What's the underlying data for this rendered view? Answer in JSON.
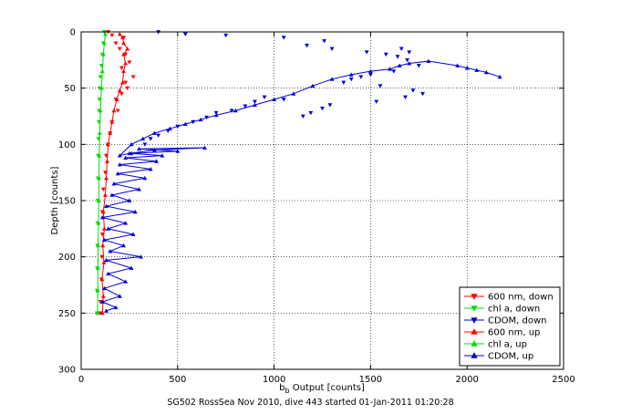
{
  "chart_data": {
    "type": "scatter",
    "title": "",
    "xlabel": "b_b Output [counts]",
    "ylabel": "Depth [counts]",
    "caption": "SG502 RossSea Nov 2010, dive 443 started 01-Jan-2011 01:20:28",
    "xlim": [
      0,
      2500
    ],
    "ylim": [
      0,
      300
    ],
    "y_reversed": true,
    "grid": true,
    "legend_position": "bottom-right",
    "x_ticks": [
      0,
      500,
      1000,
      1500,
      2000,
      2500
    ],
    "y_ticks": [
      0,
      50,
      100,
      150,
      200,
      250,
      300
    ],
    "x_tick_labels": [
      "0",
      "500",
      "1000",
      "1500",
      "2000",
      "2500"
    ],
    "y_tick_labels": [
      "0",
      "50",
      "100",
      "150",
      "200",
      "250",
      "300"
    ],
    "series": [
      {
        "name": "600 nm, down",
        "color": "#ff0000",
        "marker": "triangle-down",
        "style": "markers",
        "points": [
          [
            140,
            0
          ],
          [
            160,
            3
          ],
          [
            220,
            5
          ],
          [
            180,
            10
          ],
          [
            200,
            15
          ],
          [
            230,
            20
          ],
          [
            250,
            27
          ],
          [
            210,
            32
          ],
          [
            270,
            40
          ],
          [
            230,
            45
          ],
          [
            240,
            50
          ],
          [
            210,
            55
          ],
          [
            180,
            60
          ],
          [
            190,
            70
          ],
          [
            160,
            80
          ],
          [
            150,
            90
          ],
          [
            140,
            100
          ],
          [
            130,
            110
          ],
          [
            125,
            125
          ],
          [
            115,
            140
          ],
          [
            110,
            160
          ],
          [
            110,
            180
          ],
          [
            108,
            200
          ],
          [
            105,
            220
          ],
          [
            100,
            240
          ],
          [
            98,
            250
          ]
        ]
      },
      {
        "name": "chl a, down",
        "color": "#00dd00",
        "marker": "triangle-down",
        "style": "markers",
        "points": [
          [
            120,
            0
          ],
          [
            115,
            10
          ],
          [
            110,
            20
          ],
          [
            105,
            30
          ],
          [
            100,
            40
          ],
          [
            97,
            50
          ],
          [
            95,
            60
          ],
          [
            93,
            70
          ],
          [
            92,
            80
          ],
          [
            90,
            95
          ],
          [
            88,
            110
          ],
          [
            87,
            130
          ],
          [
            86,
            150
          ],
          [
            85,
            170
          ],
          [
            84,
            190
          ],
          [
            83,
            210
          ],
          [
            82,
            230
          ],
          [
            82,
            250
          ]
        ]
      },
      {
        "name": "CDOM, down",
        "color": "#0000dd",
        "marker": "triangle-down",
        "style": "markers",
        "points": [
          [
            400,
            0
          ],
          [
            540,
            2
          ],
          [
            750,
            3
          ],
          [
            1050,
            5
          ],
          [
            1260,
            8
          ],
          [
            1170,
            12
          ],
          [
            1300,
            15
          ],
          [
            1480,
            18
          ],
          [
            1580,
            20
          ],
          [
            1660,
            15
          ],
          [
            1700,
            18
          ],
          [
            1640,
            22
          ],
          [
            1690,
            25
          ],
          [
            1750,
            30
          ],
          [
            1620,
            35
          ],
          [
            1500,
            38
          ],
          [
            1450,
            40
          ],
          [
            1400,
            42
          ],
          [
            1360,
            45
          ],
          [
            1550,
            48
          ],
          [
            1720,
            52
          ],
          [
            1770,
            55
          ],
          [
            1680,
            58
          ],
          [
            1530,
            62
          ],
          [
            1290,
            65
          ],
          [
            1250,
            68
          ],
          [
            1190,
            72
          ],
          [
            1150,
            75
          ],
          [
            1050,
            60
          ],
          [
            950,
            58
          ],
          [
            900,
            62
          ],
          [
            850,
            66
          ],
          [
            780,
            70
          ],
          [
            700,
            72
          ],
          [
            650,
            76
          ],
          [
            580,
            80
          ],
          [
            500,
            84
          ],
          [
            450,
            88
          ],
          [
            400,
            92
          ],
          [
            360,
            95
          ],
          [
            330,
            100
          ]
        ]
      },
      {
        "name": "600 nm, up",
        "color": "#ff0000",
        "marker": "triangle-up",
        "style": "line",
        "points": [
          [
            110,
            250
          ],
          [
            115,
            235
          ],
          [
            108,
            220
          ],
          [
            118,
            205
          ],
          [
            112,
            190
          ],
          [
            120,
            175
          ],
          [
            115,
            160
          ],
          [
            125,
            145
          ],
          [
            130,
            130
          ],
          [
            135,
            115
          ],
          [
            140,
            100
          ],
          [
            150,
            90
          ],
          [
            160,
            80
          ],
          [
            170,
            70
          ],
          [
            185,
            60
          ],
          [
            200,
            52
          ],
          [
            215,
            45
          ],
          [
            220,
            35
          ],
          [
            230,
            28
          ],
          [
            220,
            20
          ],
          [
            240,
            15
          ],
          [
            220,
            10
          ],
          [
            215,
            5
          ],
          [
            200,
            2
          ]
        ]
      },
      {
        "name": "chl a, up",
        "color": "#00dd00",
        "marker": "triangle-up",
        "style": "line",
        "points": [
          [
            85,
            250
          ],
          [
            86,
            230
          ],
          [
            87,
            210
          ],
          [
            88,
            190
          ],
          [
            90,
            170
          ],
          [
            91,
            150
          ],
          [
            92,
            130
          ],
          [
            94,
            110
          ],
          [
            96,
            90
          ],
          [
            100,
            70
          ],
          [
            105,
            50
          ],
          [
            110,
            35
          ],
          [
            115,
            20
          ],
          [
            120,
            10
          ],
          [
            125,
            2
          ]
        ]
      },
      {
        "name": "CDOM, up",
        "color": "#0000dd",
        "marker": "triangle-up",
        "style": "line",
        "points": [
          [
            130,
            248
          ],
          [
            180,
            245
          ],
          [
            110,
            240
          ],
          [
            200,
            235
          ],
          [
            120,
            228
          ],
          [
            230,
            222
          ],
          [
            140,
            215
          ],
          [
            260,
            210
          ],
          [
            130,
            203
          ],
          [
            310,
            200
          ],
          [
            150,
            195
          ],
          [
            220,
            190
          ],
          [
            120,
            185
          ],
          [
            270,
            180
          ],
          [
            140,
            175
          ],
          [
            230,
            170
          ],
          [
            110,
            165
          ],
          [
            280,
            160
          ],
          [
            130,
            155
          ],
          [
            250,
            150
          ],
          [
            160,
            145
          ],
          [
            300,
            140
          ],
          [
            170,
            135
          ],
          [
            330,
            130
          ],
          [
            190,
            126
          ],
          [
            360,
            122
          ],
          [
            200,
            118
          ],
          [
            390,
            115
          ],
          [
            230,
            112
          ],
          [
            420,
            110
          ],
          [
            260,
            108
          ],
          [
            500,
            106
          ],
          [
            300,
            104
          ],
          [
            640,
            103
          ],
          [
            380,
            105
          ],
          [
            250,
            108
          ],
          [
            200,
            110
          ],
          [
            260,
            100
          ],
          [
            320,
            95
          ],
          [
            380,
            90
          ],
          [
            460,
            86
          ],
          [
            540,
            82
          ],
          [
            620,
            78
          ],
          [
            700,
            74
          ],
          [
            800,
            70
          ],
          [
            900,
            65
          ],
          [
            1000,
            60
          ],
          [
            1100,
            55
          ],
          [
            1200,
            48
          ],
          [
            1300,
            42
          ],
          [
            1400,
            38
          ],
          [
            1500,
            35
          ],
          [
            1600,
            33
          ],
          [
            1650,
            30
          ],
          [
            1700,
            28
          ],
          [
            1800,
            26
          ],
          [
            1950,
            30
          ],
          [
            2000,
            32
          ],
          [
            2050,
            34
          ],
          [
            2100,
            36
          ],
          [
            2170,
            40
          ]
        ]
      }
    ]
  }
}
